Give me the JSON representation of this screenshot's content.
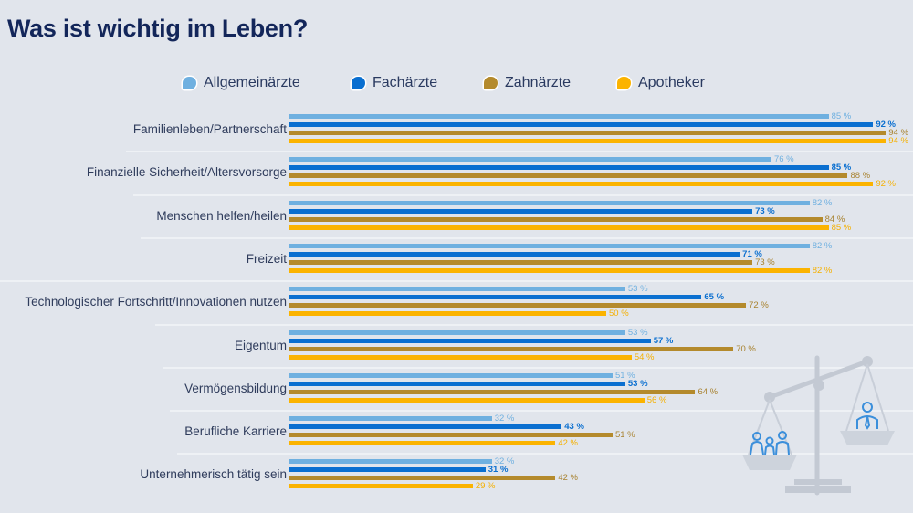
{
  "title": "Was ist wichtig im Leben?",
  "legend": [
    {
      "label": "Allgemeinärzte",
      "color": "#6fb0e0"
    },
    {
      "label": "Fachärzte",
      "color": "#0a6fd0"
    },
    {
      "label": "Zahnärzte",
      "color": "#b48a2c"
    },
    {
      "label": "Apotheker",
      "color": "#fbb300"
    }
  ],
  "illustration": "scale-with-family-and-doctor-icon",
  "chart_data": {
    "type": "bar",
    "orientation": "horizontal",
    "title": "Was ist wichtig im Leben?",
    "xlabel": "",
    "ylabel": "",
    "unit": "%",
    "xlim": [
      0,
      100
    ],
    "grid": false,
    "legend_position": "top",
    "categories": [
      "Familienleben/Partnerschaft",
      "Finanzielle Sicherheit/Altersvorsorge",
      "Menschen helfen/heilen",
      "Freizeit",
      "Technologischer Fortschritt/Innovationen nutzen",
      "Eigentum",
      "Vermögensbildung",
      "Berufliche Karriere",
      "Unternehmerisch tätig sein"
    ],
    "series": [
      {
        "name": "Allgemeinärzte",
        "color": "#6fb0e0",
        "values": [
          85,
          76,
          82,
          82,
          53,
          53,
          51,
          32,
          32
        ]
      },
      {
        "name": "Fachärzte",
        "color": "#0a6fd0",
        "values": [
          92,
          85,
          73,
          71,
          65,
          57,
          53,
          43,
          31
        ]
      },
      {
        "name": "Zahnärzte",
        "color": "#b48a2c",
        "values": [
          94,
          88,
          84,
          73,
          72,
          70,
          64,
          51,
          42
        ]
      },
      {
        "name": "Apotheker",
        "color": "#fbb300",
        "values": [
          94,
          92,
          85,
          82,
          50,
          54,
          56,
          42,
          29
        ]
      }
    ]
  }
}
